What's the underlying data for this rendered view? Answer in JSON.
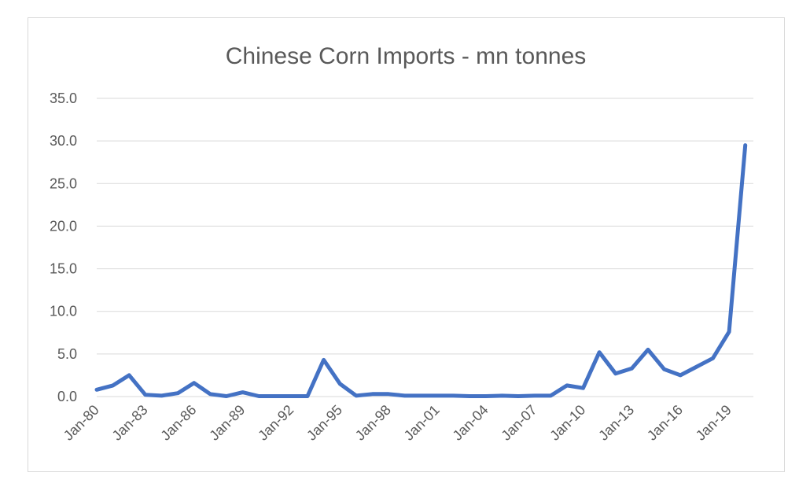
{
  "chart_data": {
    "type": "line",
    "title": "Chinese Corn Imports - mn tonnes",
    "xlabel": "",
    "ylabel": "",
    "ylim": [
      0,
      35
    ],
    "yticks": [
      "0.0",
      "5.0",
      "10.0",
      "15.0",
      "20.0",
      "25.0",
      "30.0",
      "35.0"
    ],
    "xticks": [
      "Jan-80",
      "Jan-83",
      "Jan-86",
      "Jan-89",
      "Jan-92",
      "Jan-95",
      "Jan-98",
      "Jan-01",
      "Jan-04",
      "Jan-07",
      "Jan-10",
      "Jan-13",
      "Jan-16",
      "Jan-19"
    ],
    "grid": true,
    "legend": "none",
    "color": "#4472C4",
    "series": [
      {
        "x": [
          1980,
          1981,
          1982,
          1983,
          1984,
          1985,
          1986,
          1987,
          1988,
          1989,
          1990,
          1991,
          1992,
          1993,
          1994,
          1995,
          1996,
          1997,
          1998,
          1999,
          2000,
          2001,
          2002,
          2003,
          2004,
          2005,
          2006,
          2007,
          2008,
          2009,
          2010,
          2011,
          2012,
          2013,
          2014,
          2015,
          2016,
          2017,
          2018,
          2019,
          2020
        ],
        "values": [
          0.8,
          1.3,
          2.5,
          0.2,
          0.1,
          0.4,
          1.6,
          0.3,
          0.05,
          0.5,
          0.05,
          0.05,
          0.05,
          0.05,
          4.3,
          1.5,
          0.1,
          0.3,
          0.3,
          0.1,
          0.1,
          0.1,
          0.1,
          0.05,
          0.05,
          0.1,
          0.05,
          0.1,
          0.1,
          1.3,
          1.0,
          5.2,
          2.7,
          3.3,
          5.5,
          3.2,
          2.5,
          3.5,
          4.5,
          7.6,
          29.5
        ]
      }
    ]
  }
}
